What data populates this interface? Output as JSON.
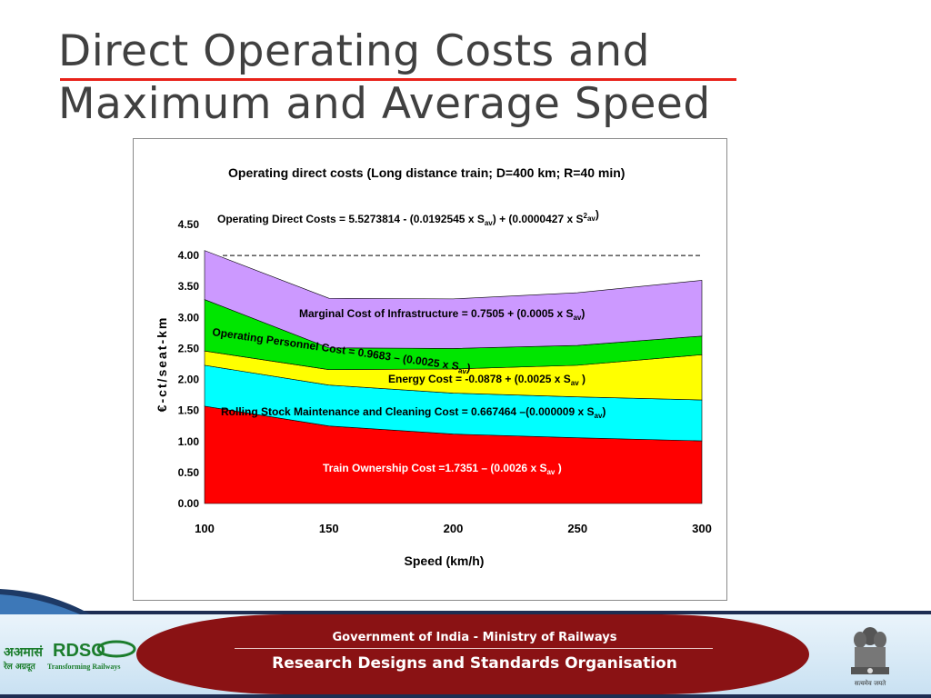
{
  "slide": {
    "title_line1": "Direct Operating Costs and",
    "title_line2": "Maximum and Average Speed"
  },
  "footer": {
    "line1": "Government of India - Ministry of Railways",
    "line2": "Research Designs and Standards Organisation",
    "logo_text": "RDSO",
    "logo_hindi": "अअमासं",
    "logo_tagline_hindi": "रेल अग्रदूत",
    "logo_tagline": "Transforming Railways",
    "emblem_caption": "सत्यमेव जयते"
  },
  "colors": {
    "title_rule": "#e8221a",
    "footer_red": "#8a1214",
    "footer_navy": "#1e2d52"
  },
  "chart_data": {
    "type": "area",
    "title": "Operating direct costs (Long distance train; D=400 km; R=40 min)",
    "formula_parts": [
      "Operating Direct Costs = 5.5273814 - (0.0192545 x S",
      "av",
      ") + (0.0000427 x S",
      "2",
      "av",
      ")"
    ],
    "xlabel": "Speed (km/h)",
    "ylabel": "€-ct/seat-km",
    "x": [
      100,
      150,
      200,
      250,
      300
    ],
    "xlim": [
      100,
      300
    ],
    "ylim": [
      0,
      4.5
    ],
    "x_ticks": [
      "100",
      "150",
      "200",
      "250",
      "300"
    ],
    "y_ticks": [
      "0.00",
      "0.50",
      "1.00",
      "1.50",
      "2.00",
      "2.50",
      "3.00",
      "3.50",
      "4.00",
      "4.50"
    ],
    "reference_line": {
      "y": 4.0,
      "style": "dashed"
    },
    "series": [
      {
        "name": "Train Ownership Cost",
        "label_parts": [
          "Train Ownership Cost =1.7351 – (0.0026 x S",
          "av",
          " )"
        ],
        "color": "#ff0000",
        "values": [
          1.57,
          1.25,
          1.12,
          1.06,
          1.01
        ]
      },
      {
        "name": "Rolling Stock Maintenance and Cleaning Cost",
        "label_parts": [
          "Rolling Stock Maintenance and Cleaning Cost = 0.667464 –(0.000009 x S",
          "av",
          ")"
        ],
        "color": "#00ffff",
        "values": [
          0.66,
          0.66,
          0.66,
          0.66,
          0.66
        ]
      },
      {
        "name": "Energy Cost",
        "label_parts": [
          "Energy Cost = -0.0878 + (0.0025 x S",
          "av",
          " )"
        ],
        "color": "#ffff00",
        "values": [
          0.23,
          0.25,
          0.39,
          0.51,
          0.73
        ]
      },
      {
        "name": "Operating Personnel Cost",
        "label_parts": [
          "Operating Personnel Cost = 0.9683 – (0.0025 x S",
          "av",
          ")"
        ],
        "color": "#00e600",
        "values": [
          0.83,
          0.35,
          0.33,
          0.32,
          0.3
        ]
      },
      {
        "name": "Marginal Cost of Infrastructure",
        "label_parts": [
          "Marginal Cost of Infrastructure = 0.7505 + (0.0005 x S",
          "av",
          ")"
        ],
        "color": "#cc99ff",
        "values": [
          0.79,
          0.8,
          0.8,
          0.85,
          0.9
        ]
      }
    ],
    "grid": false,
    "legend": "inline"
  }
}
